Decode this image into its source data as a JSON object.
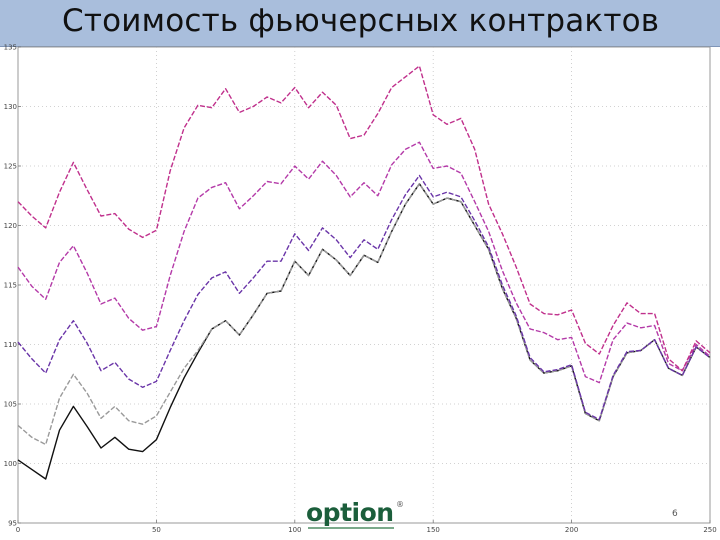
{
  "slide": {
    "title": "Стоимость фьючерсных контрактов",
    "page_number": "6",
    "logo_text": "option",
    "logo_mark": "®"
  },
  "chart_data": {
    "type": "line",
    "title": "",
    "xlabel": "",
    "ylabel": "",
    "xlim": [
      0,
      250
    ],
    "ylim": [
      95,
      135
    ],
    "x_ticks": [
      "0",
      "50",
      "100",
      "150",
      "200",
      "250"
    ],
    "y_ticks": [
      "95",
      "100",
      "105",
      "110",
      "115",
      "120",
      "125",
      "130",
      "135"
    ],
    "grid": "dotted",
    "x": [
      0,
      5,
      10,
      15,
      20,
      25,
      30,
      35,
      40,
      45,
      50,
      55,
      60,
      65,
      70,
      75,
      80,
      85,
      90,
      95,
      100,
      105,
      110,
      115,
      120,
      125,
      130,
      135,
      140,
      145,
      150,
      155,
      160,
      165,
      170,
      175,
      180,
      185,
      190,
      195,
      200,
      205,
      210,
      215,
      220,
      225,
      230,
      235,
      240,
      245,
      250
    ],
    "series": [
      {
        "color": "#111111",
        "style": "solid",
        "values": [
          100.3,
          99.5,
          98.7,
          102.8,
          104.8,
          103.1,
          101.3,
          102.2,
          101.2,
          101.0,
          102.0,
          104.7,
          107.2,
          109.3,
          111.3,
          112.0,
          110.8,
          112.5,
          114.3,
          114.5,
          117.0,
          115.8,
          118.0,
          117.1,
          115.8,
          117.5,
          116.9,
          119.5,
          121.8,
          123.5,
          121.8,
          122.3,
          122.0,
          120.0,
          118.0,
          114.7,
          112.2,
          108.7,
          107.6,
          107.8,
          108.2,
          104.2,
          103.6,
          107.3,
          109.3,
          109.5,
          110.4,
          108.0,
          107.4,
          109.8,
          108.9
        ]
      },
      {
        "color": "#9a9a9a",
        "style": "dashed",
        "values": [
          103.2,
          102.2,
          101.6,
          105.5,
          107.5,
          105.9,
          103.8,
          104.8,
          103.6,
          103.3,
          104.0,
          106.0,
          108.0,
          109.5,
          111.3,
          112.0,
          110.8,
          112.5,
          114.3,
          114.5,
          117.0,
          115.8,
          118.0,
          117.1,
          115.8,
          117.5,
          116.9,
          119.5,
          121.8,
          123.5,
          121.8,
          122.3,
          122.0,
          120.0,
          118.0,
          114.7,
          112.2,
          108.7,
          107.6,
          107.8,
          108.2,
          104.2,
          103.6,
          107.3,
          109.3,
          109.5,
          110.4,
          108.0,
          107.4,
          109.8,
          108.9
        ]
      },
      {
        "color": "#6a35a8",
        "style": "dashed",
        "values": [
          110.2,
          108.8,
          107.6,
          110.4,
          112.0,
          110.1,
          107.8,
          108.5,
          107.1,
          106.4,
          106.9,
          109.5,
          112.0,
          114.2,
          115.6,
          116.1,
          114.3,
          115.6,
          117.0,
          117.0,
          119.3,
          117.9,
          119.8,
          118.8,
          117.3,
          118.8,
          118.0,
          120.5,
          122.6,
          124.2,
          122.4,
          122.8,
          122.4,
          120.4,
          118.2,
          115.0,
          112.4,
          108.9,
          107.7,
          107.9,
          108.3,
          104.3,
          103.7,
          107.4,
          109.4,
          109.5,
          110.4,
          108.0,
          107.4,
          109.8,
          108.9
        ]
      },
      {
        "color": "#b43aa8",
        "style": "dashed",
        "values": [
          116.5,
          114.9,
          113.8,
          116.9,
          118.3,
          116.0,
          113.4,
          113.9,
          112.2,
          111.2,
          111.5,
          115.8,
          119.5,
          122.3,
          123.2,
          123.6,
          121.4,
          122.5,
          123.7,
          123.5,
          125.0,
          123.9,
          125.4,
          124.2,
          122.4,
          123.6,
          122.5,
          125.1,
          126.4,
          127.0,
          124.8,
          125.0,
          124.4,
          122.0,
          119.5,
          116.2,
          113.5,
          111.3,
          111.0,
          110.4,
          110.6,
          107.3,
          106.8,
          110.4,
          111.8,
          111.4,
          111.6,
          108.4,
          107.8,
          110.0,
          109.0
        ]
      },
      {
        "color": "#c0308c",
        "style": "dashed",
        "values": [
          122.0,
          120.8,
          119.8,
          122.8,
          125.3,
          123.0,
          120.8,
          121.0,
          119.7,
          119.0,
          119.6,
          124.6,
          128.2,
          130.1,
          129.9,
          131.5,
          129.5,
          130.0,
          130.8,
          130.3,
          131.6,
          129.9,
          131.2,
          130.1,
          127.3,
          127.6,
          129.4,
          131.6,
          132.5,
          133.4,
          129.3,
          128.5,
          129.0,
          126.4,
          121.8,
          119.3,
          116.5,
          113.4,
          112.6,
          112.5,
          112.9,
          110.1,
          109.2,
          111.6,
          113.5,
          112.6,
          112.6,
          108.8,
          107.8,
          110.3,
          109.3
        ]
      }
    ]
  },
  "colors": {
    "title_bar": "#a9bedc",
    "logo_green": "#1b5e3b"
  }
}
